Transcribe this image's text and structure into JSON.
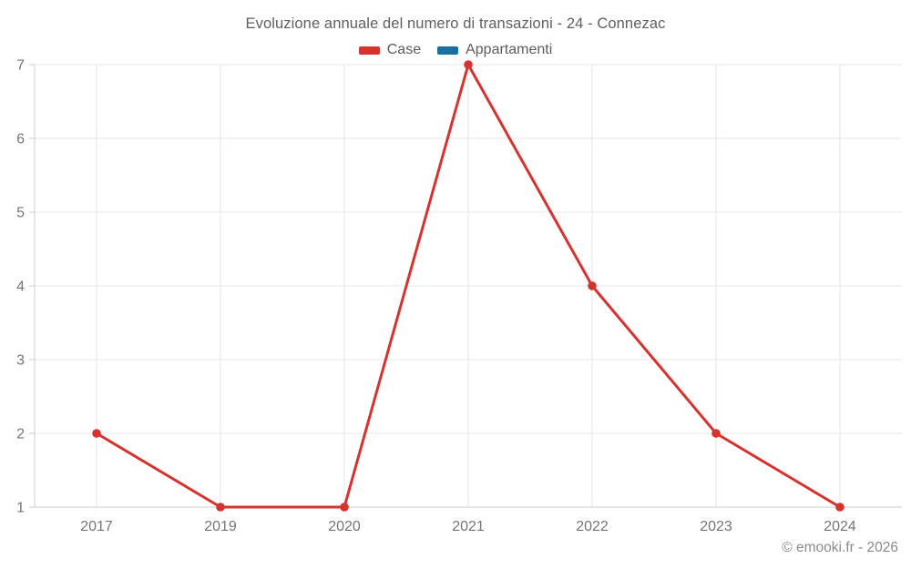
{
  "chart": {
    "copyright": "© emooki.fr - 2026"
  },
  "chart_data": {
    "type": "line",
    "title": "Evoluzione annuale del numero di transazioni - 24 - Connezac",
    "categories": [
      "2017",
      "2019",
      "2020",
      "2021",
      "2022",
      "2023",
      "2024"
    ],
    "series": [
      {
        "name": "Case",
        "color": "#d6322e",
        "values": [
          2,
          1,
          1,
          7,
          4,
          2,
          1
        ]
      },
      {
        "name": "Appartamenti",
        "color": "#17709e",
        "values": []
      }
    ],
    "ylim": [
      1,
      7
    ],
    "yticks": [
      1,
      2,
      3,
      4,
      5,
      6,
      7
    ],
    "grid": true,
    "legend_position": "top",
    "colors": {
      "gridline": "#e7e7e7",
      "axis": "#cccccc",
      "tick_label": "#757575",
      "title": "#5f5f5f",
      "copyright": "#8a8a8a"
    }
  }
}
